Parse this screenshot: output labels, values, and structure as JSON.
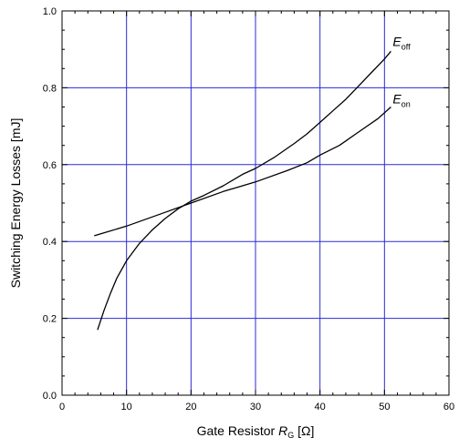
{
  "chart_data": {
    "type": "line",
    "xlabel": {
      "text": "Gate Resistor ",
      "symbol": "R",
      "subscript": "G",
      "unit": " [Ω]"
    },
    "ylabel": "Switching Energy Losses [mJ]",
    "xlim": [
      0,
      60
    ],
    "ylim": [
      0.0,
      1.0
    ],
    "x_ticks": [
      0,
      10,
      20,
      30,
      40,
      50,
      60
    ],
    "y_ticks": [
      0.0,
      0.2,
      0.4,
      0.6,
      0.8,
      1.0
    ],
    "grid": true,
    "colors": {
      "grid": "#2a2ad6",
      "series": "#000000",
      "axis": "#000000"
    },
    "series": [
      {
        "name": "E_off",
        "label_main": "E",
        "label_sub": "off",
        "points": [
          [
            5.5,
            0.17
          ],
          [
            6.5,
            0.22
          ],
          [
            7.5,
            0.265
          ],
          [
            8.5,
            0.305
          ],
          [
            10,
            0.35
          ],
          [
            12,
            0.395
          ],
          [
            14,
            0.43
          ],
          [
            16,
            0.46
          ],
          [
            18,
            0.485
          ],
          [
            20,
            0.505
          ],
          [
            22,
            0.52
          ],
          [
            25,
            0.545
          ],
          [
            28,
            0.575
          ],
          [
            30,
            0.59
          ],
          [
            33,
            0.62
          ],
          [
            36,
            0.655
          ],
          [
            38,
            0.68
          ],
          [
            40,
            0.71
          ],
          [
            42,
            0.74
          ],
          [
            44,
            0.77
          ],
          [
            46,
            0.805
          ],
          [
            48,
            0.84
          ],
          [
            50,
            0.875
          ],
          [
            51,
            0.895
          ]
        ]
      },
      {
        "name": "E_on",
        "label_main": "E",
        "label_sub": "on",
        "points": [
          [
            5,
            0.415
          ],
          [
            10,
            0.44
          ],
          [
            15,
            0.47
          ],
          [
            20,
            0.5
          ],
          [
            25,
            0.53
          ],
          [
            30,
            0.555
          ],
          [
            35,
            0.585
          ],
          [
            38,
            0.605
          ],
          [
            40,
            0.625
          ],
          [
            43,
            0.65
          ],
          [
            46,
            0.685
          ],
          [
            49,
            0.72
          ],
          [
            51,
            0.75
          ]
        ]
      }
    ]
  }
}
